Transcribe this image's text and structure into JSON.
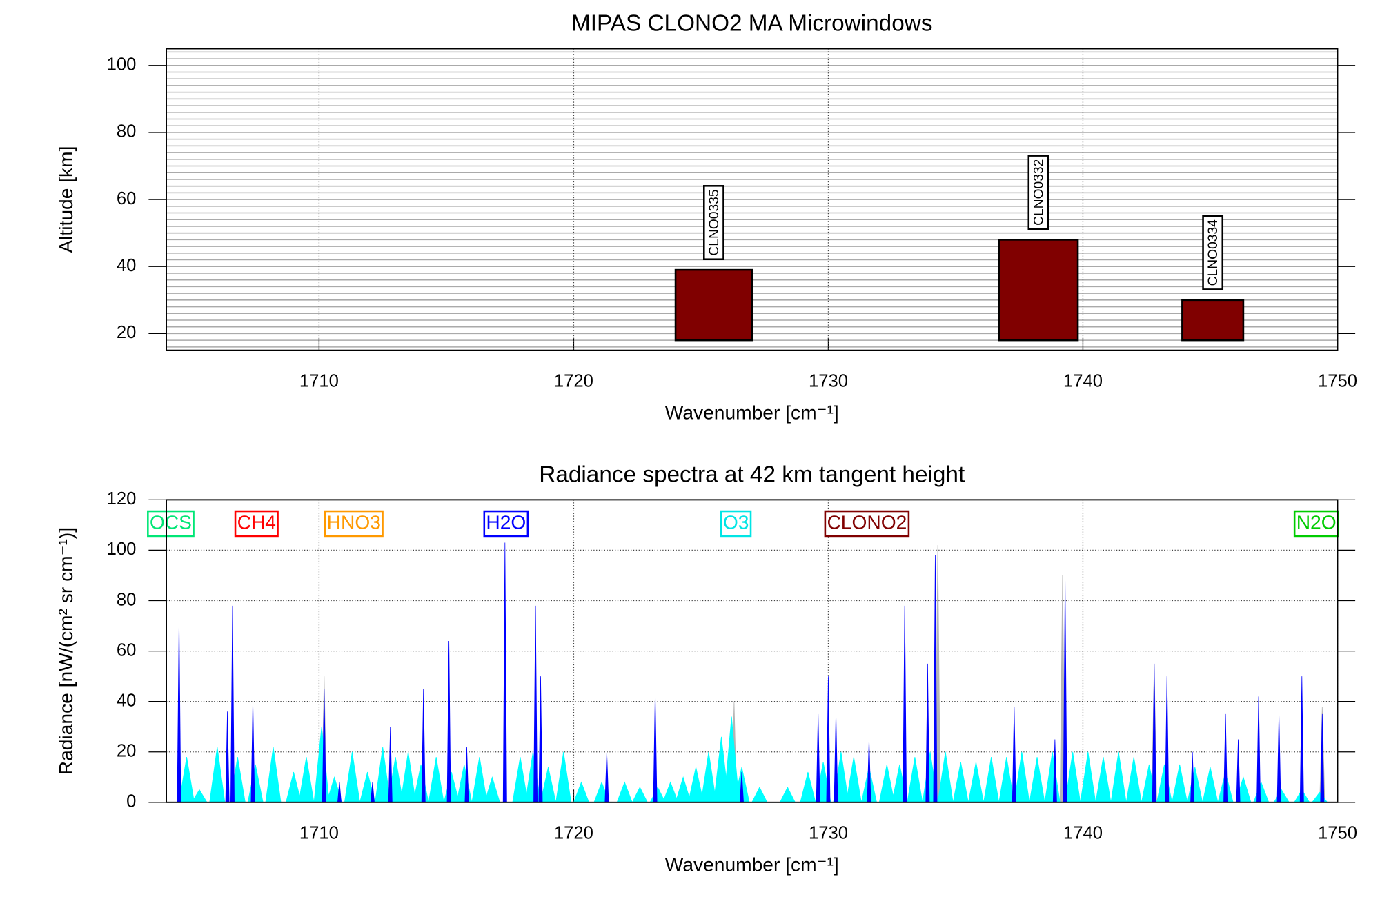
{
  "chart_data": [
    {
      "type": "bar",
      "title": "MIPAS CLONO2 MA Microwindows",
      "xlabel": "Wavenumber [cm⁻¹]",
      "ylabel": "Altitude [km]",
      "xlim": [
        1704,
        1750
      ],
      "xticks": [
        1710,
        1720,
        1730,
        1740,
        1750
      ],
      "ylim": [
        15,
        105
      ],
      "yticks": [
        20,
        40,
        60,
        80,
        100
      ],
      "yminor": [
        16,
        18,
        20,
        22,
        24,
        26,
        28,
        30,
        32,
        34,
        36,
        38,
        40,
        42,
        44,
        46,
        48,
        50,
        52,
        54,
        56,
        58,
        60,
        62,
        64,
        66,
        68,
        70,
        72,
        74,
        76,
        78,
        80,
        82,
        84,
        86,
        88,
        90,
        92,
        94,
        96,
        98,
        100,
        102,
        104
      ],
      "color": "#800000",
      "grid": true,
      "windows": [
        {
          "name": "CLNO0335",
          "x": [
            1724,
            1727
          ],
          "y": [
            18,
            39
          ]
        },
        {
          "name": "CLNO0332",
          "x": [
            1736.7,
            1739.8
          ],
          "y": [
            18,
            48
          ]
        },
        {
          "name": "CLNO0334",
          "x": [
            1743.9,
            1746.3
          ],
          "y": [
            18,
            30
          ]
        }
      ]
    },
    {
      "type": "area",
      "title": "Radiance spectra at 42 km tangent height",
      "xlabel": "Wavenumber [cm⁻¹]",
      "ylabel": "Radiance [nW/(cm² sr cm⁻¹)]",
      "xlim": [
        1704,
        1750
      ],
      "xticks": [
        1710,
        1720,
        1730,
        1740,
        1750
      ],
      "ylim": [
        0,
        120
      ],
      "yticks": [
        0,
        20,
        40,
        60,
        80,
        100,
        120
      ],
      "grid": true,
      "species": [
        {
          "name": "OCS",
          "color": "#00e676"
        },
        {
          "name": "CH4",
          "color": "#ff0000"
        },
        {
          "name": "HNO3",
          "color": "#ff9900"
        },
        {
          "name": "H2O",
          "color": "#0000ff"
        },
        {
          "name": "O3",
          "color": "#00e5e5"
        },
        {
          "name": "CLONO2",
          "color": "#800000"
        },
        {
          "name": "N2O",
          "color": "#00cc00"
        }
      ],
      "series": [
        {
          "color": "#b4b4b4",
          "x": [
            1710.2,
            1726.3,
            1734.3,
            1739.2,
            1742.8,
            1749.4
          ],
          "values": [
            50,
            40,
            102,
            90,
            55,
            38
          ]
        },
        {
          "color": "#00ffff",
          "x": [
            1704.8,
            1705.3,
            1706.0,
            1706.8,
            1707.5,
            1708.2,
            1709.0,
            1709.5,
            1710.1,
            1710.6,
            1711.3,
            1711.9,
            1712.5,
            1713.0,
            1713.5,
            1714.0,
            1714.6,
            1715.2,
            1715.7,
            1716.3,
            1716.8,
            1717.9,
            1718.4,
            1719.0,
            1719.6,
            1720.3,
            1721.1,
            1722.0,
            1722.6,
            1723.3,
            1723.8,
            1724.3,
            1724.8,
            1725.3,
            1725.8,
            1726.2,
            1726.6,
            1727.3,
            1728.4,
            1729.2,
            1729.8,
            1730.5,
            1731.0,
            1731.6,
            1732.3,
            1732.8,
            1733.4,
            1734.0,
            1734.6,
            1735.2,
            1735.8,
            1736.4,
            1737.0,
            1737.6,
            1738.2,
            1738.8,
            1739.6,
            1740.2,
            1740.8,
            1741.4,
            1742.0,
            1742.6,
            1743.2,
            1743.8,
            1744.4,
            1745.0,
            1745.6,
            1746.3,
            1747.0,
            1747.8,
            1748.6,
            1749.3
          ],
          "values": [
            18,
            5,
            22,
            18,
            15,
            22,
            12,
            18,
            30,
            10,
            20,
            12,
            22,
            18,
            20,
            15,
            18,
            12,
            15,
            18,
            10,
            18,
            20,
            14,
            20,
            8,
            8,
            8,
            6,
            6,
            8,
            10,
            14,
            20,
            26,
            34,
            14,
            6,
            6,
            12,
            16,
            20,
            18,
            14,
            15,
            15,
            18,
            20,
            20,
            16,
            16,
            18,
            18,
            20,
            18,
            20,
            20,
            20,
            18,
            20,
            18,
            15,
            15,
            15,
            14,
            14,
            12,
            10,
            8,
            5,
            5,
            4
          ]
        },
        {
          "color": "#0000ff",
          "x": [
            1704.5,
            1706.4,
            1706.6,
            1707.4,
            1710.2,
            1710.8,
            1712.1,
            1712.8,
            1714.1,
            1715.1,
            1715.8,
            1717.3,
            1718.5,
            1718.7,
            1721.3,
            1723.2,
            1726.6,
            1729.6,
            1730.0,
            1730.3,
            1731.6,
            1733.0,
            1733.9,
            1734.2,
            1737.3,
            1738.9,
            1739.3,
            1742.8,
            1743.3,
            1744.3,
            1745.6,
            1746.1,
            1746.9,
            1747.7,
            1748.6,
            1749.4
          ],
          "values": [
            72,
            36,
            78,
            40,
            45,
            8,
            8,
            30,
            45,
            64,
            22,
            103,
            78,
            50,
            20,
            43,
            12,
            35,
            50,
            35,
            25,
            78,
            55,
            98,
            38,
            25,
            88,
            55,
            50,
            20,
            35,
            25,
            42,
            35,
            50,
            35
          ]
        }
      ]
    }
  ]
}
